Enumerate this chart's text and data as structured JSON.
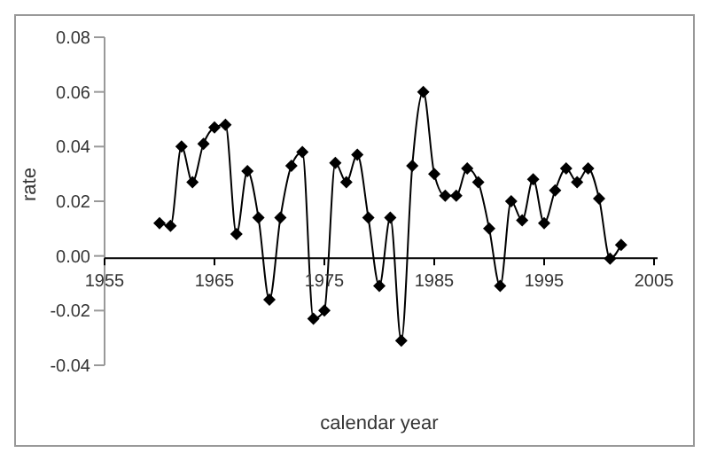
{
  "chart_data": {
    "type": "line",
    "xlabel": "calendar year",
    "ylabel": "rate",
    "x": [
      1960,
      1961,
      1962,
      1963,
      1964,
      1965,
      1966,
      1967,
      1968,
      1969,
      1970,
      1971,
      1972,
      1973,
      1974,
      1975,
      1976,
      1977,
      1978,
      1979,
      1980,
      1981,
      1982,
      1983,
      1984,
      1985,
      1986,
      1987,
      1988,
      1989,
      1990,
      1991,
      1992,
      1993,
      1994,
      1995,
      1996,
      1997,
      1998,
      1999,
      2000,
      2001,
      2002
    ],
    "series": [
      {
        "color": "#000000",
        "values": [
          0.012,
          0.011,
          0.04,
          0.027,
          0.041,
          0.047,
          0.048,
          0.008,
          0.031,
          0.014,
          -0.016,
          0.014,
          0.033,
          0.038,
          -0.023,
          -0.02,
          0.034,
          0.027,
          0.037,
          0.014,
          -0.011,
          0.014,
          -0.031,
          0.033,
          0.06,
          0.03,
          0.022,
          0.022,
          0.032,
          0.027,
          0.01,
          -0.011,
          0.02,
          0.013,
          0.028,
          0.012,
          0.024,
          0.032,
          0.027,
          0.032,
          0.021,
          -0.001,
          0.004
        ]
      }
    ],
    "xlim": [
      1955,
      2005
    ],
    "xticks": [
      1955,
      1965,
      1975,
      1985,
      1995,
      2005
    ],
    "ylim": [
      -0.04,
      0.08
    ],
    "yticks": [
      {
        "value": -0.04,
        "label": "-0.04"
      },
      {
        "value": -0.02,
        "label": "-0.02"
      },
      {
        "value": 0,
        "label": "0.00"
      },
      {
        "value": 0.02,
        "label": "0.02"
      },
      {
        "value": 0.04,
        "label": "0.04"
      },
      {
        "value": 0.06,
        "label": "0.06"
      },
      {
        "value": 0.08,
        "label": "0.08"
      }
    ],
    "marker": "diamond",
    "line_style": "solid",
    "grid": false,
    "legend": false
  }
}
